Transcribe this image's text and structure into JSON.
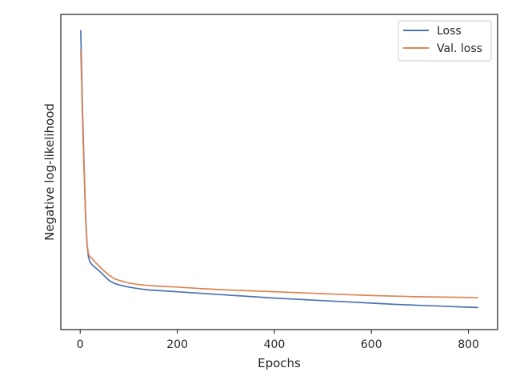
{
  "chart_data": {
    "type": "line",
    "xlabel": "Epochs",
    "ylabel": "Negative log-likelihood",
    "xlim": [
      -40,
      860
    ],
    "ylim": [
      0,
      1
    ],
    "y_ticks_labeled": false,
    "x_ticks": [
      0,
      200,
      400,
      600,
      800
    ],
    "x_tick_labels": [
      "0",
      "200",
      "400",
      "600",
      "800"
    ],
    "legend": {
      "placement": "top-right",
      "entries": [
        "Loss",
        "Val. loss"
      ]
    },
    "grid": false,
    "series": [
      {
        "name": "Loss",
        "color": "#4c72b0",
        "points": [
          [
            1,
            0.95
          ],
          [
            3,
            0.82
          ],
          [
            5,
            0.68
          ],
          [
            8,
            0.52
          ],
          [
            11,
            0.37
          ],
          [
            14,
            0.27
          ],
          [
            17,
            0.23
          ],
          [
            20,
            0.215
          ],
          [
            25,
            0.205
          ],
          [
            30,
            0.198
          ],
          [
            40,
            0.185
          ],
          [
            50,
            0.17
          ],
          [
            60,
            0.155
          ],
          [
            70,
            0.147
          ],
          [
            80,
            0.142
          ],
          [
            90,
            0.138
          ],
          [
            100,
            0.135
          ],
          [
            120,
            0.13
          ],
          [
            140,
            0.126
          ],
          [
            160,
            0.124
          ],
          [
            200,
            0.12
          ],
          [
            250,
            0.115
          ],
          [
            300,
            0.11
          ],
          [
            350,
            0.105
          ],
          [
            400,
            0.1
          ],
          [
            450,
            0.096
          ],
          [
            500,
            0.092
          ],
          [
            550,
            0.088
          ],
          [
            600,
            0.084
          ],
          [
            650,
            0.08
          ],
          [
            700,
            0.077
          ],
          [
            750,
            0.074
          ],
          [
            800,
            0.071
          ],
          [
            820,
            0.07
          ]
        ]
      },
      {
        "name": "Val. loss",
        "color": "#dd8452",
        "points": [
          [
            1,
            0.89
          ],
          [
            3,
            0.78
          ],
          [
            5,
            0.65
          ],
          [
            8,
            0.5
          ],
          [
            11,
            0.36
          ],
          [
            14,
            0.27
          ],
          [
            17,
            0.24
          ],
          [
            20,
            0.232
          ],
          [
            25,
            0.225
          ],
          [
            30,
            0.215
          ],
          [
            40,
            0.2
          ],
          [
            50,
            0.185
          ],
          [
            60,
            0.172
          ],
          [
            70,
            0.162
          ],
          [
            80,
            0.156
          ],
          [
            90,
            0.152
          ],
          [
            100,
            0.148
          ],
          [
            120,
            0.143
          ],
          [
            140,
            0.14
          ],
          [
            160,
            0.138
          ],
          [
            200,
            0.135
          ],
          [
            250,
            0.13
          ],
          [
            300,
            0.126
          ],
          [
            350,
            0.123
          ],
          [
            400,
            0.12
          ],
          [
            450,
            0.117
          ],
          [
            500,
            0.114
          ],
          [
            550,
            0.111
          ],
          [
            600,
            0.108
          ],
          [
            650,
            0.106
          ],
          [
            700,
            0.104
          ],
          [
            750,
            0.103
          ],
          [
            800,
            0.102
          ],
          [
            820,
            0.101
          ]
        ]
      }
    ]
  }
}
